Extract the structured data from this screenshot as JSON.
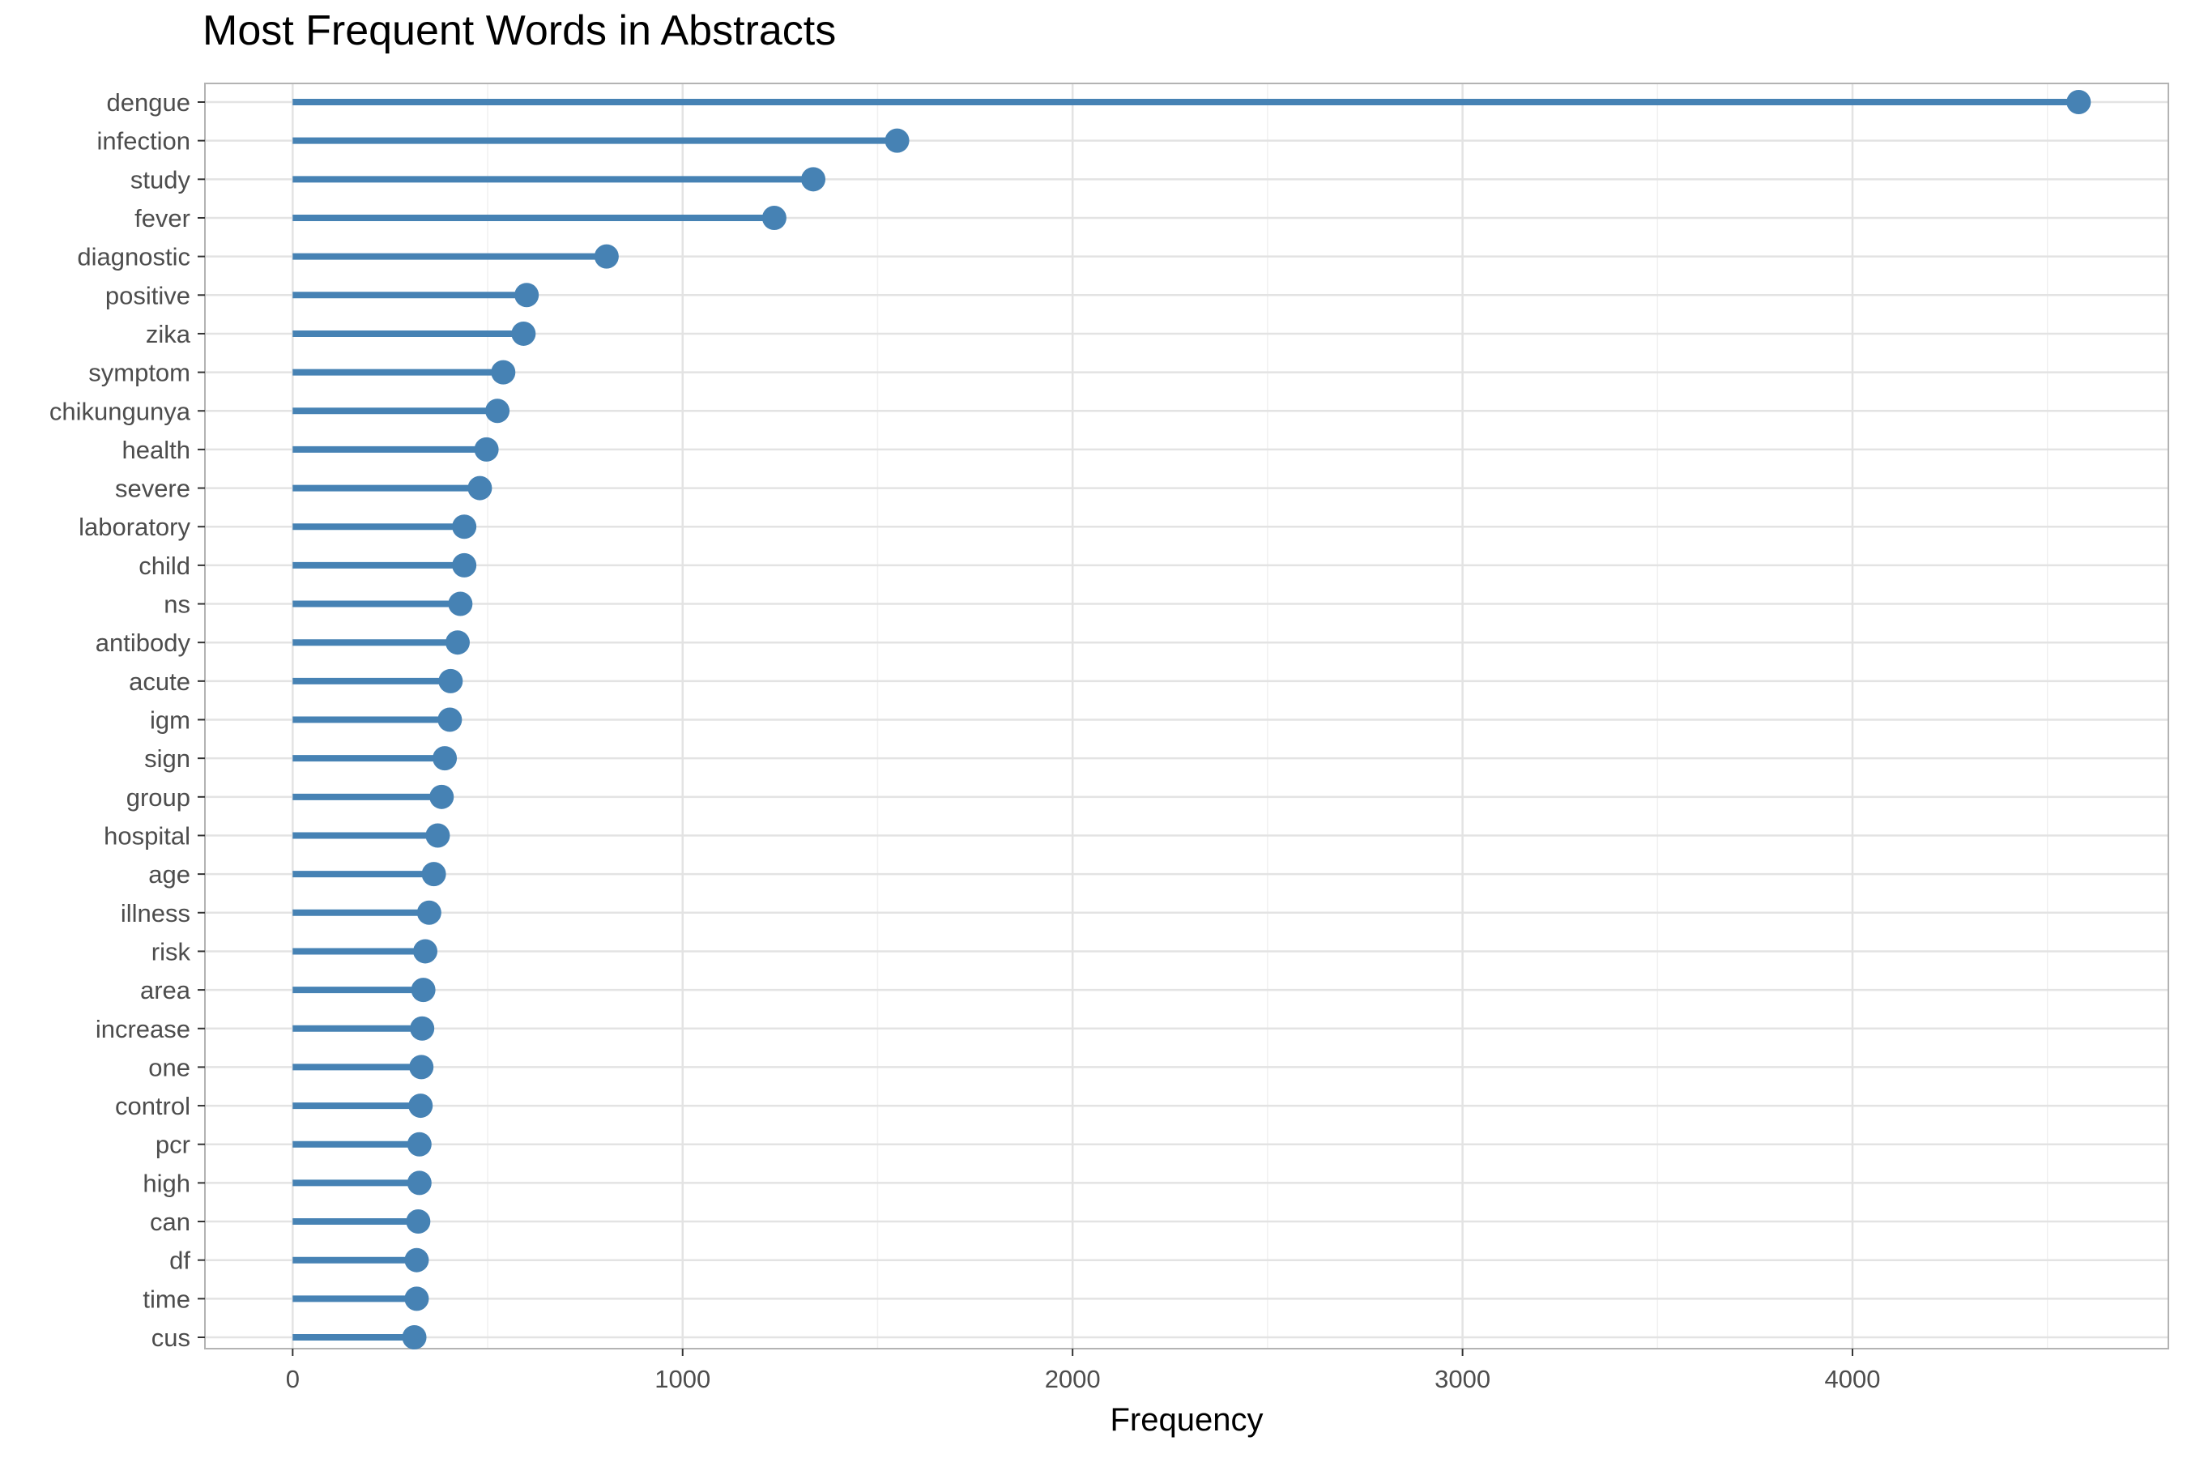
{
  "chart_data": {
    "type": "lollipop",
    "title": "Most Frequent Words in Abstracts",
    "xlabel": "Frequency",
    "ylabel": "",
    "xlim": [
      -225,
      4810
    ],
    "x_ticks": [
      0,
      1000,
      2000,
      3000,
      4000
    ],
    "grid": true,
    "color": "#4682B4",
    "categories": [
      "dengue",
      "infection",
      "study",
      "fever",
      "diagnostic",
      "positive",
      "zika",
      "symptom",
      "chikungunya",
      "health",
      "severe",
      "laboratory",
      "child",
      "ns",
      "antibody",
      "acute",
      "igm",
      "sign",
      "group",
      "hospital",
      "age",
      "illness",
      "risk",
      "area",
      "increase",
      "one",
      "control",
      "pcr",
      "high",
      "can",
      "df",
      "time",
      "cus"
    ],
    "values": [
      4580,
      1550,
      1335,
      1235,
      805,
      600,
      592,
      540,
      525,
      497,
      480,
      440,
      440,
      430,
      423,
      405,
      403,
      390,
      382,
      372,
      362,
      350,
      340,
      335,
      332,
      330,
      328,
      325,
      325,
      322,
      318,
      318,
      312
    ]
  }
}
